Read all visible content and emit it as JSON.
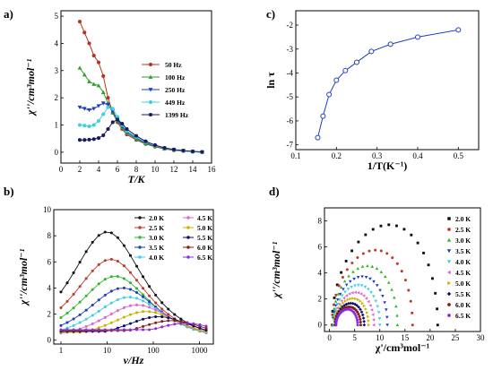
{
  "chart_data": [
    {
      "id": "a",
      "panel_label": "a)",
      "type": "line",
      "xlabel": "T/K",
      "ylabel": "χ''/cm³mol⁻¹",
      "xlim": [
        0,
        16
      ],
      "ylim": [
        -0.4,
        5.2
      ],
      "xticks": [
        0,
        2,
        4,
        6,
        8,
        10,
        12,
        14,
        16
      ],
      "yticks": [
        0,
        1,
        2,
        3,
        4,
        5
      ],
      "legend_position": "right",
      "series": [
        {
          "name": "50 Hz",
          "color": "#b5331f",
          "marker": "circle",
          "x": [
            2,
            2.5,
            3,
            3.5,
            4,
            4.5,
            5,
            5.5,
            6,
            6.5,
            7,
            8,
            9,
            10,
            11,
            12,
            13,
            14,
            15
          ],
          "y": [
            4.8,
            4.4,
            4.0,
            3.55,
            3.3,
            2.8,
            2.0,
            1.45,
            1.1,
            0.85,
            0.65,
            0.45,
            0.3,
            0.2,
            0.12,
            0.07,
            0.04,
            0.02,
            0.0
          ]
        },
        {
          "name": "100 Hz",
          "color": "#2ca02c",
          "marker": "triangle-up",
          "x": [
            2,
            2.5,
            3,
            3.5,
            4,
            4.5,
            5,
            5.5,
            6,
            6.5,
            7,
            8,
            9,
            10,
            11,
            12,
            13,
            14,
            15
          ],
          "y": [
            3.1,
            2.85,
            2.6,
            2.5,
            2.45,
            2.2,
            1.8,
            1.45,
            1.15,
            0.9,
            0.7,
            0.48,
            0.32,
            0.22,
            0.13,
            0.08,
            0.05,
            0.02,
            0.0
          ]
        },
        {
          "name": "250 Hz",
          "color": "#1f3fc0",
          "marker": "triangle-down",
          "x": [
            2,
            2.5,
            3,
            3.5,
            4,
            4.5,
            5,
            5.5,
            6,
            6.5,
            7,
            8,
            9,
            10,
            11,
            12,
            13,
            14,
            15
          ],
          "y": [
            1.65,
            1.6,
            1.55,
            1.6,
            1.7,
            1.8,
            1.75,
            1.5,
            1.2,
            0.95,
            0.75,
            0.52,
            0.35,
            0.23,
            0.14,
            0.09,
            0.05,
            0.02,
            0.0
          ]
        },
        {
          "name": "449 Hz",
          "color": "#3fd0e0",
          "marker": "circle",
          "x": [
            2,
            2.5,
            3,
            3.5,
            4,
            4.5,
            5,
            5.5,
            6,
            6.5,
            7,
            8,
            9,
            10,
            11,
            12,
            13,
            14,
            15
          ],
          "y": [
            1.0,
            0.98,
            0.95,
            1.0,
            1.15,
            1.4,
            1.65,
            1.6,
            1.3,
            1.0,
            0.78,
            0.55,
            0.37,
            0.24,
            0.15,
            0.09,
            0.05,
            0.02,
            0.0
          ]
        },
        {
          "name": "1399 Hz",
          "color": "#1a1a5e",
          "marker": "circle",
          "x": [
            2,
            2.5,
            3,
            3.5,
            4,
            4.5,
            5,
            5.5,
            6,
            6.5,
            7,
            8,
            9,
            10,
            11,
            12,
            13,
            14,
            15
          ],
          "y": [
            0.45,
            0.45,
            0.46,
            0.48,
            0.52,
            0.62,
            0.85,
            1.1,
            1.2,
            1.05,
            0.85,
            0.6,
            0.4,
            0.26,
            0.16,
            0.1,
            0.06,
            0.03,
            0.01
          ]
        }
      ]
    },
    {
      "id": "c",
      "panel_label": "c)",
      "type": "line",
      "xlabel": "1/T(K⁻¹)",
      "ylabel": "ln τ",
      "xlim": [
        0.1,
        0.55
      ],
      "ylim": [
        -7.2,
        -1.4
      ],
      "xticks": [
        0.1,
        0.2,
        0.3,
        0.4,
        0.5
      ],
      "yticks": [
        -2,
        -3,
        -4,
        -5,
        -6,
        -7
      ],
      "series": [
        {
          "name": "",
          "color": "#1f3fc0",
          "marker": "circle-open",
          "x": [
            0.154,
            0.167,
            0.182,
            0.2,
            0.222,
            0.25,
            0.286,
            0.333,
            0.4,
            0.5
          ],
          "y": [
            -6.7,
            -5.8,
            -4.9,
            -4.3,
            -3.9,
            -3.55,
            -3.1,
            -2.8,
            -2.5,
            -2.2
          ]
        }
      ]
    },
    {
      "id": "b",
      "panel_label": "b)",
      "type": "line",
      "xlabel": "ν/Hz",
      "ylabel": "χ''/cm³mol⁻¹",
      "xscale": "log",
      "xlim": [
        0.7,
        2000
      ],
      "ylim": [
        -0.3,
        10
      ],
      "xticks": [
        1,
        10,
        100,
        1000
      ],
      "yticks": [
        0,
        2,
        4,
        6,
        8,
        10
      ],
      "legend_position": "top-right",
      "series": [
        {
          "name": "2.0 K",
          "color": "#111111",
          "peak_nu": 10,
          "peak_chi": 8.3,
          "tail_chi": 0.45
        },
        {
          "name": "2.5 K",
          "color": "#c0392b",
          "peak_nu": 12,
          "peak_chi": 6.2,
          "tail_chi": 0.55
        },
        {
          "name": "3.0 K",
          "color": "#2eb82e",
          "peak_nu": 15,
          "peak_chi": 4.9,
          "tail_chi": 0.6
        },
        {
          "name": "3.5 K",
          "color": "#1f3fc0",
          "peak_nu": 22,
          "peak_chi": 4.0,
          "tail_chi": 0.65
        },
        {
          "name": "4.0 K",
          "color": "#3fd0e0",
          "peak_nu": 30,
          "peak_chi": 3.3,
          "tail_chi": 0.7
        },
        {
          "name": "4.5 K",
          "color": "#e066d0",
          "peak_nu": 45,
          "peak_chi": 2.7,
          "tail_chi": 0.75
        },
        {
          "name": "5.0 K",
          "color": "#c8b400",
          "peak_nu": 70,
          "peak_chi": 2.2,
          "tail_chi": 0.85
        },
        {
          "name": "5.5 K",
          "color": "#0a0a6e",
          "peak_nu": 130,
          "peak_chi": 1.8,
          "tail_chi": 0.95
        },
        {
          "name": "6.0 K",
          "color": "#8b1a1a",
          "peak_nu": 250,
          "peak_chi": 1.5,
          "tail_chi": 1.05
        },
        {
          "name": "6.5 K",
          "color": "#8a2be2",
          "peak_nu": 500,
          "peak_chi": 1.3,
          "tail_chi": 1.15
        }
      ]
    },
    {
      "id": "d",
      "panel_label": "d)",
      "type": "scatter",
      "xlabel": "χ'/cm³mol⁻¹",
      "ylabel": "χ''/cm³mol⁻¹",
      "xlim": [
        -1,
        30
      ],
      "ylim": [
        -0.5,
        9
      ],
      "xticks": [
        0,
        5,
        10,
        15,
        20,
        25,
        30
      ],
      "yticks": [
        0,
        2,
        4,
        6,
        8
      ],
      "legend_position": "right",
      "series": [
        {
          "name": "2.0 K",
          "color": "#111111",
          "marker": "square",
          "x_start": 0.5,
          "x_end": 21.5,
          "peak": 8.3
        },
        {
          "name": "2.5 K",
          "color": "#c0392b",
          "marker": "circle",
          "x_start": 0.5,
          "x_end": 16.5,
          "peak": 6.2
        },
        {
          "name": "3.0 K",
          "color": "#2eb82e",
          "marker": "triangle-up",
          "x_start": 0.6,
          "x_end": 13.5,
          "peak": 4.9
        },
        {
          "name": "3.5 K",
          "color": "#1f3fc0",
          "marker": "triangle-down",
          "x_start": 0.7,
          "x_end": 11.5,
          "peak": 4.0
        },
        {
          "name": "4.0 K",
          "color": "#3fd0e0",
          "marker": "triangle-down",
          "x_start": 0.8,
          "x_end": 10.0,
          "peak": 3.3
        },
        {
          "name": "4.5 K",
          "color": "#e066d0",
          "marker": "triangle-left",
          "x_start": 0.9,
          "x_end": 8.8,
          "peak": 2.7
        },
        {
          "name": "5.0 K",
          "color": "#c8b400",
          "marker": "triangle-right",
          "x_start": 1.0,
          "x_end": 7.8,
          "peak": 2.2
        },
        {
          "name": "5.5 K",
          "color": "#0a0a6e",
          "marker": "diamond",
          "x_start": 1.1,
          "x_end": 6.9,
          "peak": 1.8
        },
        {
          "name": "6.0 K",
          "color": "#8b1a1a",
          "marker": "circle",
          "x_start": 1.2,
          "x_end": 6.2,
          "peak": 1.5
        },
        {
          "name": "6.5 K",
          "color": "#8a2be2",
          "marker": "circle",
          "x_start": 1.3,
          "x_end": 5.6,
          "peak": 1.3
        }
      ]
    }
  ]
}
